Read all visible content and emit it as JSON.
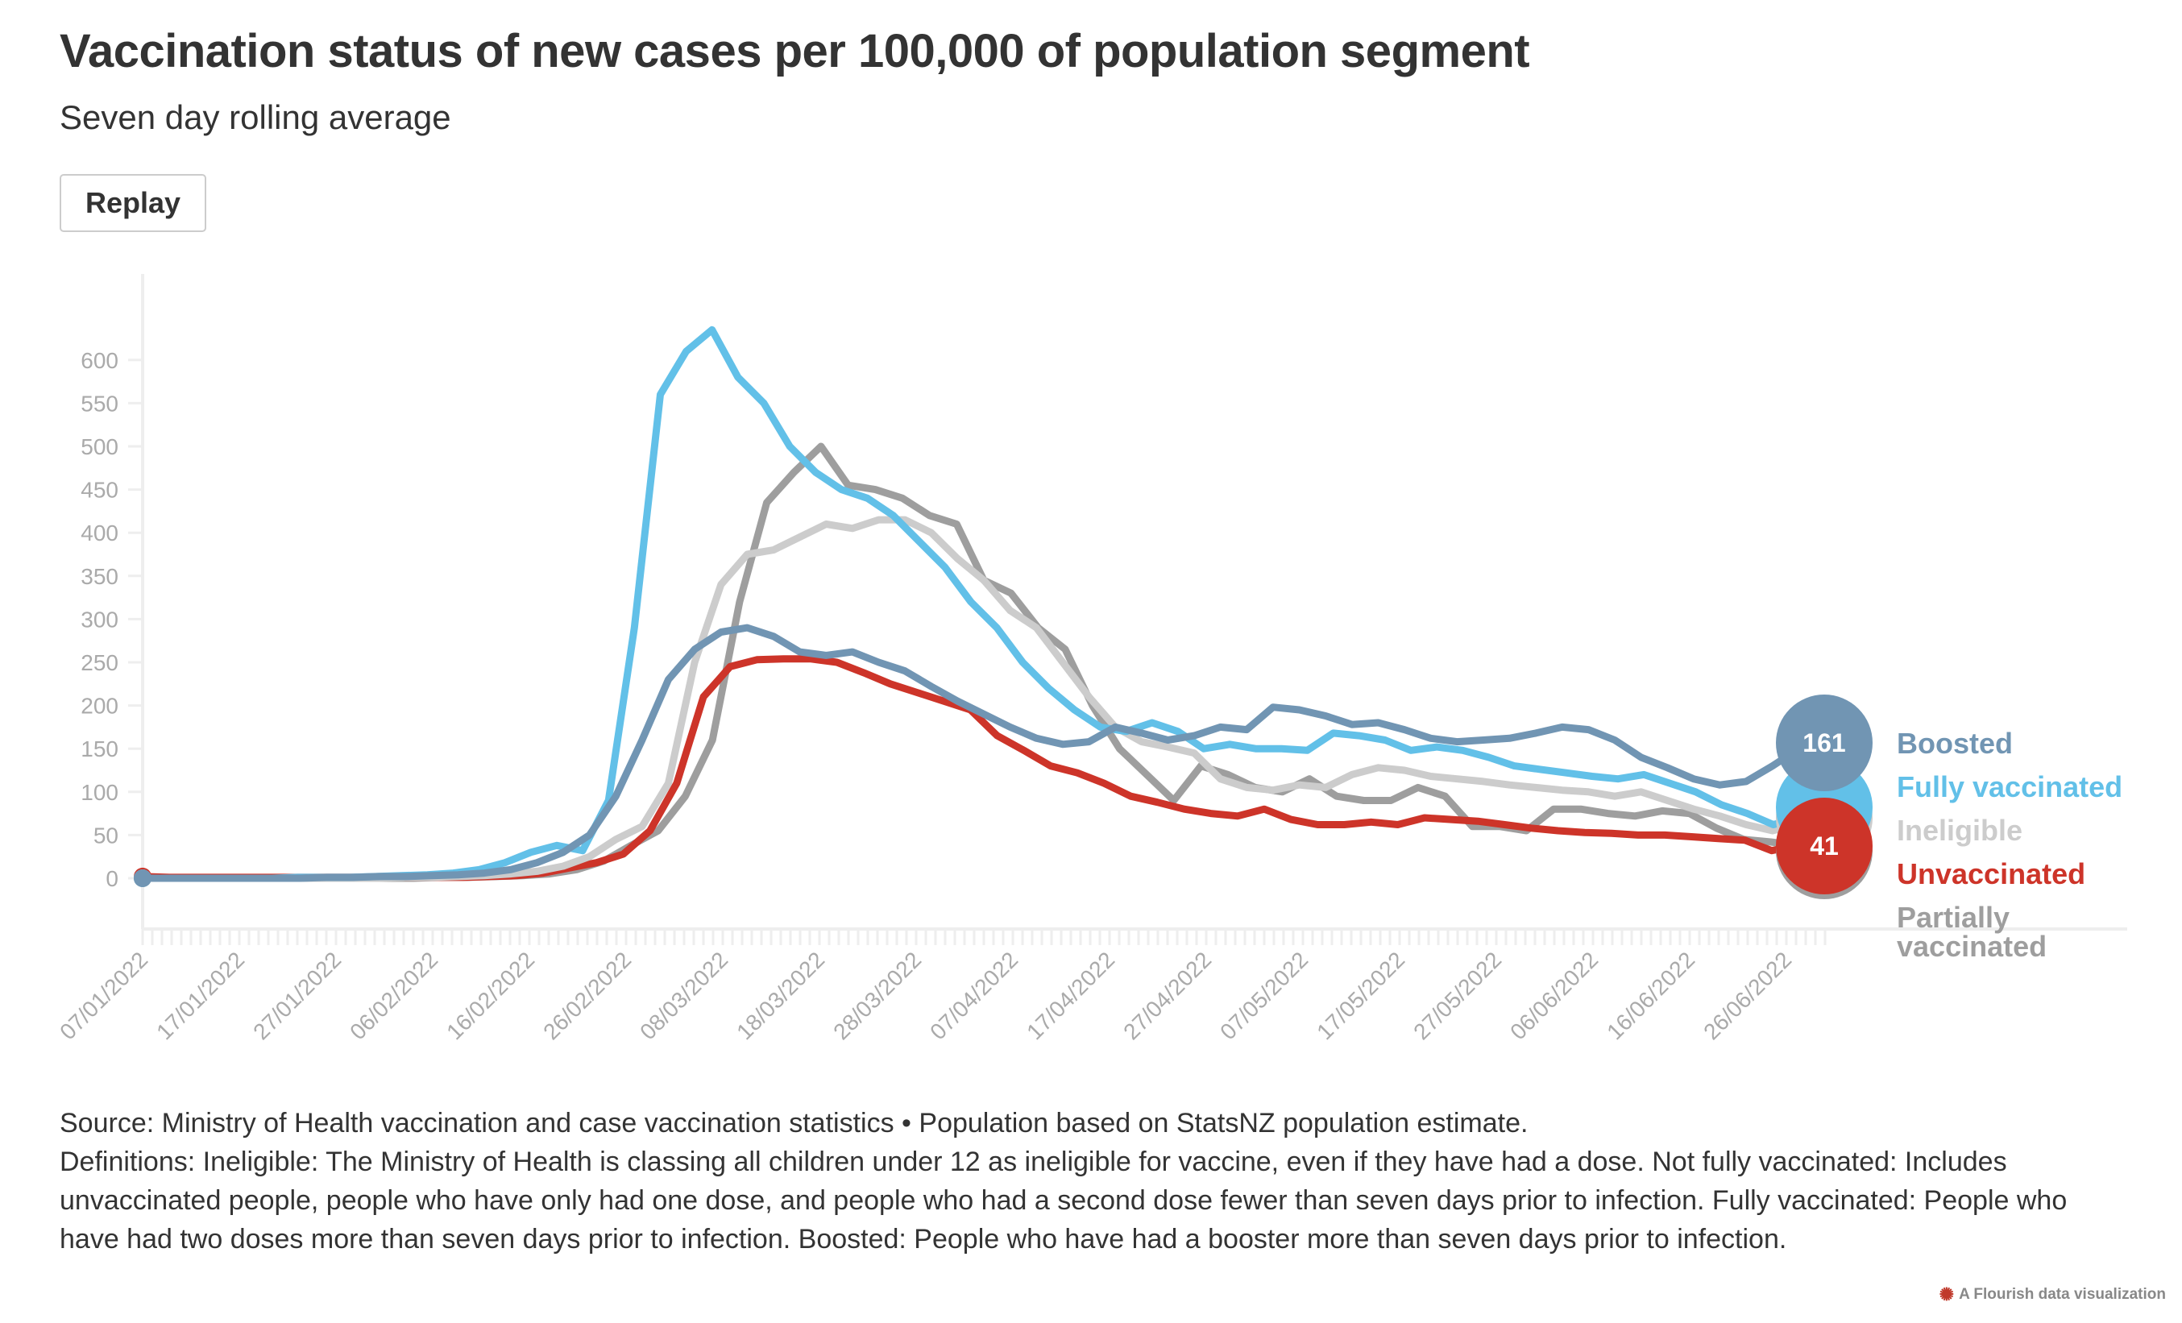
{
  "header": {
    "title": "Vaccination status of new cases per 100,000 of population segment",
    "subtitle": "Seven day rolling average",
    "replay_label": "Replay"
  },
  "footer": {
    "source": "Source: Ministry of Health vaccination and case vaccination statistics • Population based on StatsNZ population estimate.",
    "definitions": "Definitions: Ineligible: The Ministry of Health is classing all children under 12 as ineligible for vaccine, even if they have had a dose. Not fully vaccinated: Includes unvaccinated people, people who have only had one dose, and people who had a second dose fewer than seven days prior to infection. Fully vaccinated: People who have had two doses more than seven days prior to infection. Boosted: People who have had a booster more than seven days prior to infection.",
    "credit": "A Flourish data visualization",
    "credit_icon": "flourish-logo-icon"
  },
  "chart_data": {
    "type": "line",
    "title": "Vaccination status of new cases per 100,000 of population segment",
    "subtitle": "Seven day rolling average",
    "xlabel": "",
    "ylabel": "",
    "x_start": "07/01/2022",
    "x_end": "30/06/2022",
    "ylim": [
      -55,
      640
    ],
    "yticks": [
      0,
      50,
      100,
      150,
      200,
      250,
      300,
      350,
      400,
      450,
      500,
      550,
      600
    ],
    "xtick_labels": [
      "07/01/2022",
      "17/01/2022",
      "27/01/2022",
      "06/02/2022",
      "16/02/2022",
      "26/02/2022",
      "08/03/2022",
      "18/03/2022",
      "28/03/2022",
      "07/04/2022",
      "17/04/2022",
      "27/04/2022",
      "07/05/2022",
      "17/05/2022",
      "27/05/2022",
      "06/06/2022",
      "16/06/2022",
      "26/06/2022"
    ],
    "xtick_interval_days": 10,
    "grid": false,
    "legend_position": "right",
    "sample_interval_days": 3,
    "series": [
      {
        "name": "Partially vaccinated",
        "color": "#9e9e9e",
        "end_label": "",
        "values": [
          0,
          0,
          0,
          0,
          0,
          0,
          0,
          0,
          0,
          0,
          0,
          1,
          1,
          2,
          3,
          5,
          10,
          20,
          38,
          55,
          95,
          160,
          320,
          435,
          470,
          500,
          455,
          450,
          440,
          420,
          410,
          345,
          330,
          290,
          265,
          200,
          150,
          120,
          90,
          130,
          120,
          105,
          100,
          115,
          95,
          90,
          90,
          105,
          95,
          60,
          60,
          55,
          80,
          80,
          75,
          72,
          78,
          75,
          58,
          45,
          42,
          38,
          40
        ]
      },
      {
        "name": "Unvaccinated",
        "color": "#cd3429",
        "end_label": "41",
        "values": [
          2,
          1,
          1,
          1,
          1,
          1,
          1,
          1,
          1,
          1,
          1,
          1,
          1,
          2,
          3,
          6,
          12,
          18,
          28,
          55,
          110,
          210,
          245,
          253,
          254,
          254,
          250,
          238,
          225,
          215,
          205,
          195,
          165,
          148,
          130,
          122,
          110,
          95,
          88,
          80,
          75,
          72,
          80,
          68,
          62,
          62,
          65,
          62,
          70,
          68,
          66,
          62,
          58,
          55,
          53,
          52,
          50,
          50,
          48,
          46,
          44,
          32,
          38,
          41
        ]
      },
      {
        "name": "Ineligible",
        "color": "#cccccc",
        "end_label": "",
        "values": [
          0,
          0,
          0,
          0,
          0,
          0,
          0,
          0,
          0,
          0,
          1,
          1,
          2,
          3,
          5,
          8,
          14,
          25,
          45,
          60,
          110,
          250,
          340,
          375,
          380,
          395,
          410,
          405,
          415,
          415,
          400,
          370,
          345,
          310,
          290,
          250,
          210,
          175,
          158,
          152,
          145,
          115,
          105,
          102,
          108,
          105,
          120,
          128,
          125,
          118,
          115,
          112,
          108,
          105,
          102,
          100,
          95,
          100,
          90,
          80,
          72,
          62,
          55,
          62,
          70
        ]
      },
      {
        "name": "Fully vaccinated",
        "color": "#62c0e8",
        "end_label": "",
        "values": [
          0,
          0,
          0,
          0,
          0,
          0,
          1,
          1,
          1,
          2,
          3,
          4,
          6,
          10,
          18,
          30,
          38,
          32,
          90,
          290,
          560,
          610,
          635,
          580,
          550,
          500,
          470,
          450,
          440,
          420,
          390,
          360,
          320,
          290,
          250,
          220,
          195,
          175,
          170,
          180,
          170,
          150,
          155,
          150,
          150,
          148,
          168,
          165,
          160,
          148,
          152,
          148,
          140,
          130,
          126,
          122,
          118,
          115,
          120,
          110,
          100,
          85,
          75,
          62,
          70,
          72
        ]
      },
      {
        "name": "Boosted",
        "color": "#7195b3",
        "end_label": "161",
        "values": [
          0,
          0,
          0,
          0,
          0,
          0,
          0,
          1,
          1,
          2,
          2,
          3,
          4,
          6,
          10,
          18,
          30,
          50,
          95,
          160,
          230,
          265,
          285,
          290,
          280,
          262,
          258,
          262,
          250,
          240,
          222,
          205,
          190,
          175,
          162,
          155,
          158,
          175,
          168,
          160,
          165,
          175,
          172,
          198,
          195,
          188,
          178,
          180,
          172,
          162,
          158,
          160,
          162,
          168,
          175,
          172,
          160,
          140,
          128,
          115,
          108,
          112,
          130,
          150,
          161
        ]
      }
    ]
  }
}
